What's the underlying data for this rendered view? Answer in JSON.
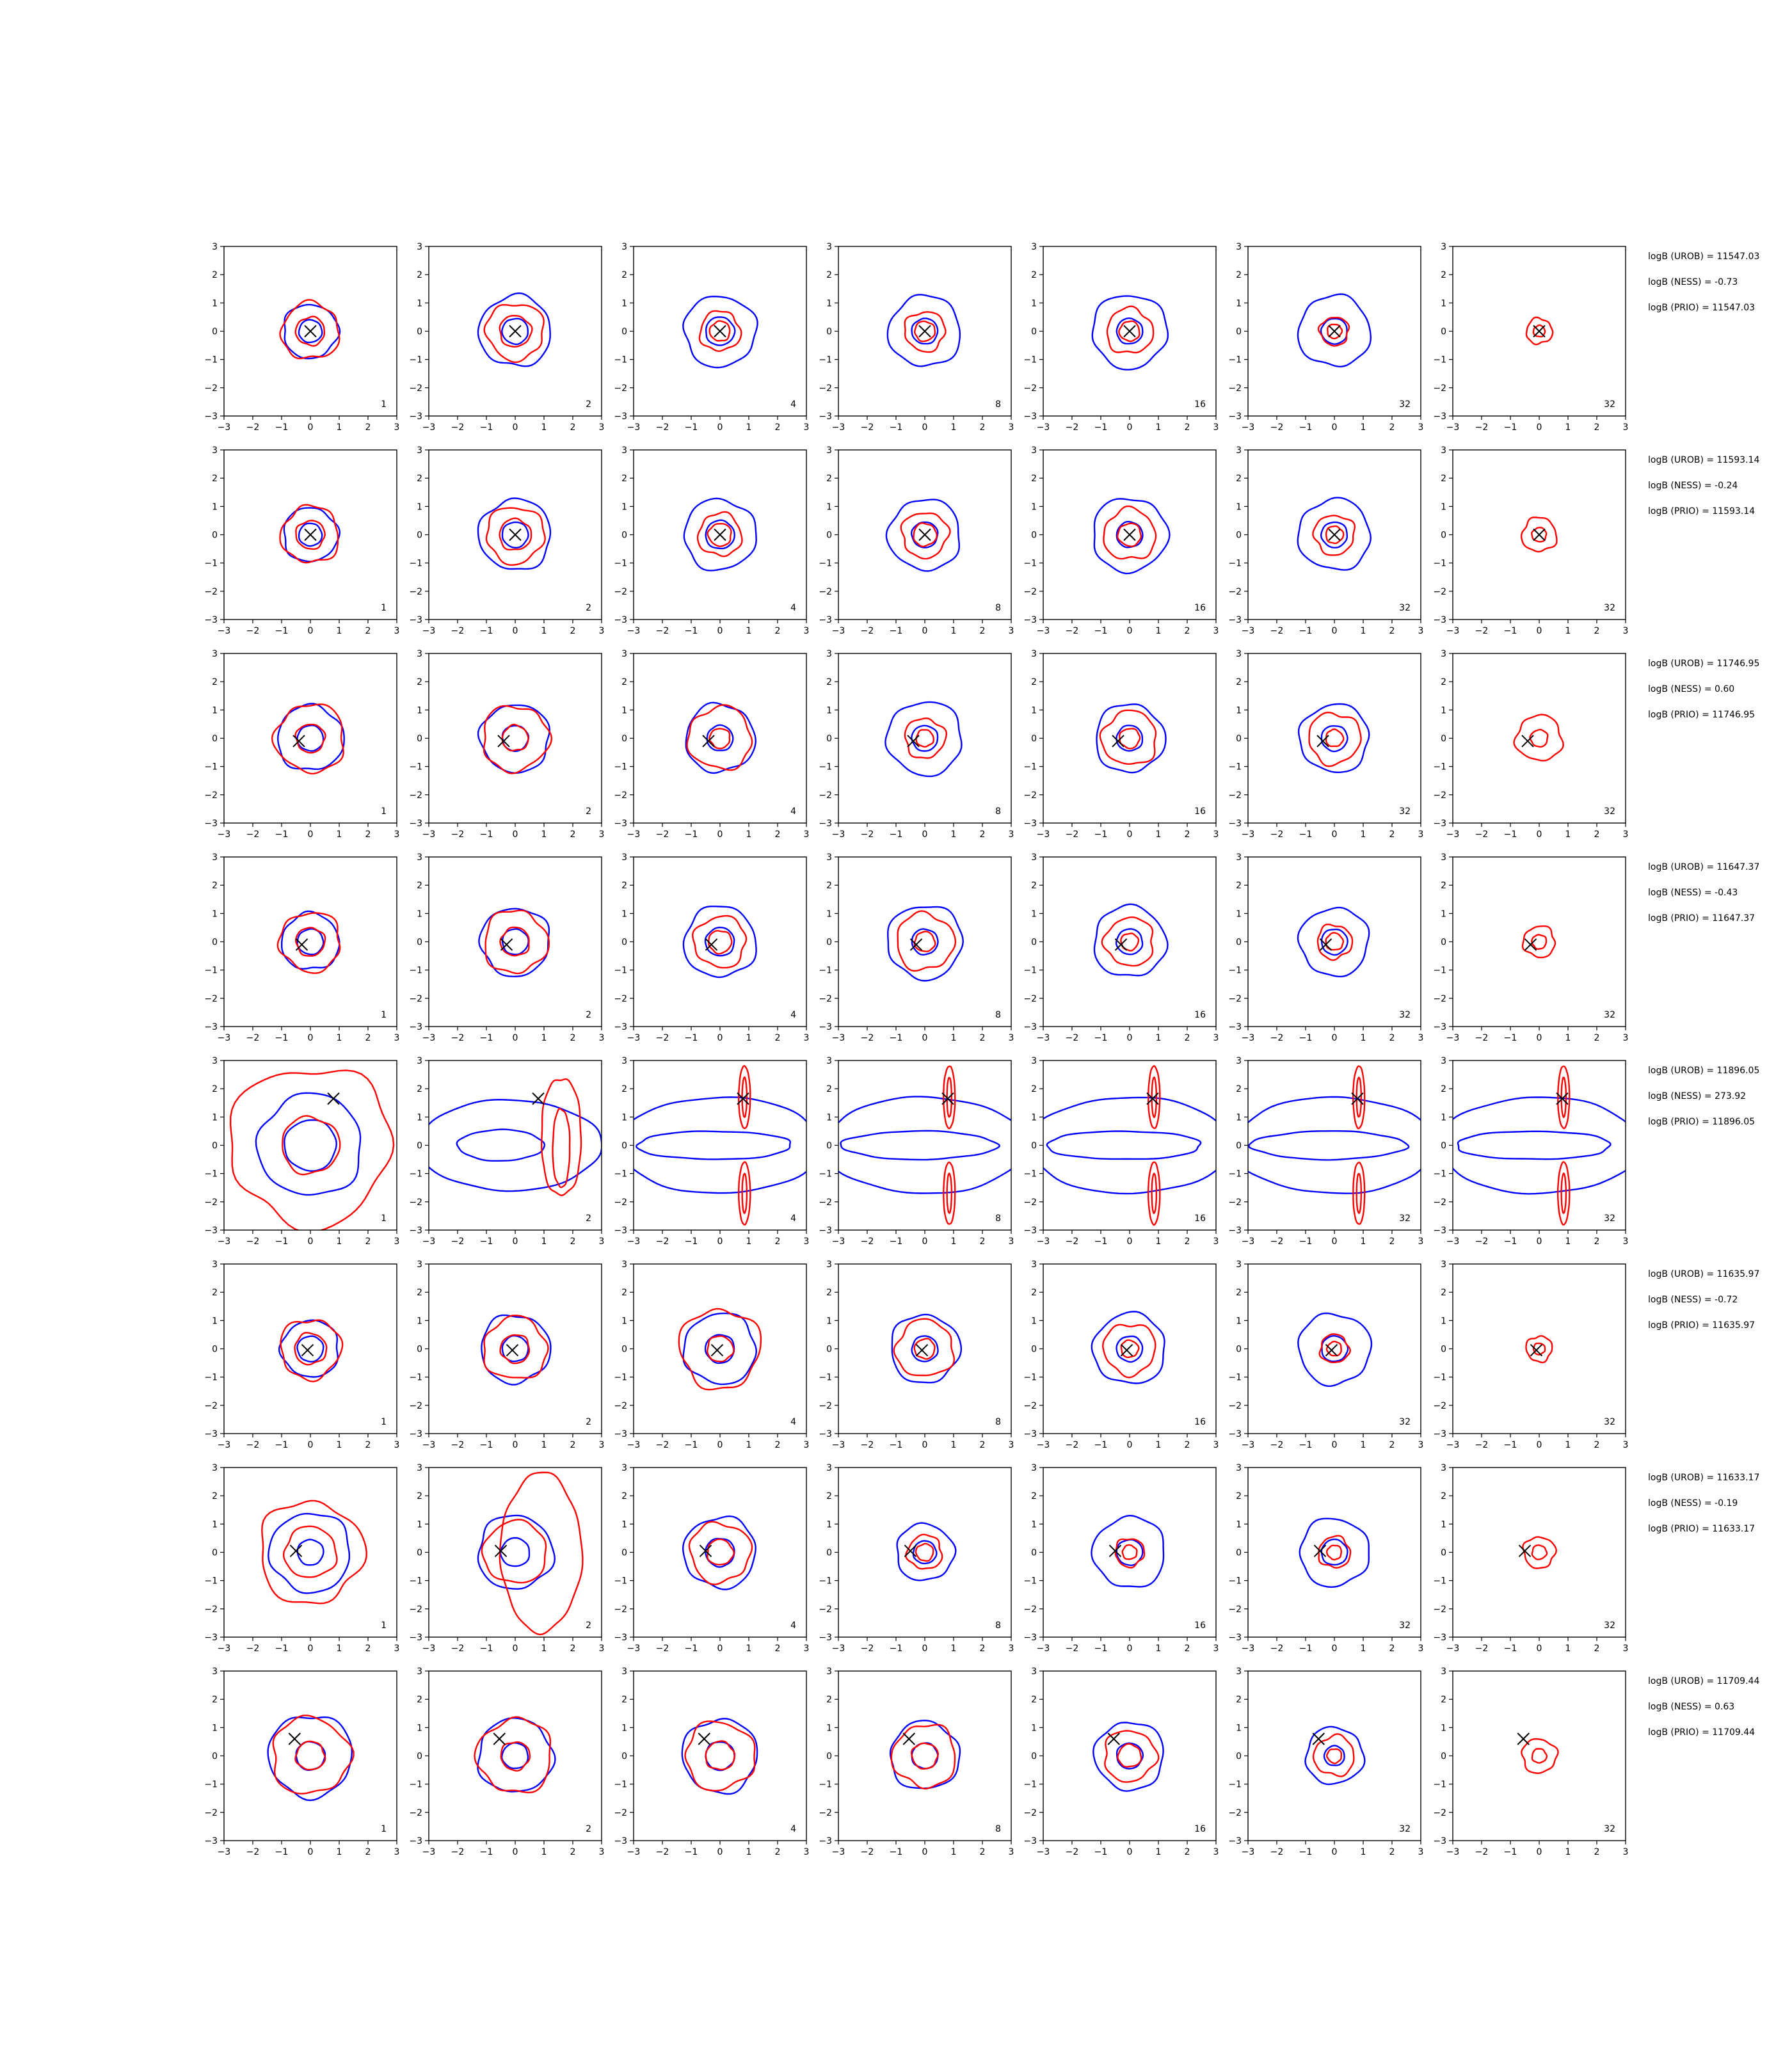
{
  "chart_data": {
    "type": "contour-grid",
    "xlim": [
      -3,
      3
    ],
    "ylim": [
      -3,
      3
    ],
    "ticks": [
      "−3",
      "−2",
      "−1",
      "0",
      "1",
      "2",
      "3"
    ],
    "tick_values": [
      -3,
      -2,
      -1,
      0,
      1,
      2,
      3
    ],
    "columns": [
      "1",
      "2",
      "4",
      "8",
      "16",
      "32",
      "32"
    ],
    "colors": {
      "blue_contour": "#0000ff",
      "red_contour": "#ff0000",
      "marker": "#000000"
    },
    "rows": [
      {
        "marker": [
          0.0,
          0.0
        ],
        "logB": [
          "logB (UROB) = 11547.03",
          "logB (NESS) = -0.73",
          "logB (PRIO) = 11547.03"
        ],
        "panels": [
          {
            "blue": [
              0.95,
              0.4
            ],
            "red": [
              1.0,
              0.5
            ]
          },
          {
            "blue": [
              1.25,
              0.45
            ],
            "red": [
              1.0,
              0.55
            ]
          },
          {
            "blue": [
              1.25,
              0.5
            ],
            "red": [
              0.7,
              0.35
            ]
          },
          {
            "blue": [
              1.25,
              0.45
            ],
            "red": [
              0.7,
              0.35
            ]
          },
          {
            "blue": [
              1.3,
              0.45
            ],
            "red": [
              0.8,
              0.35
            ]
          },
          {
            "blue": [
              1.25,
              0.45
            ],
            "red": [
              0.5,
              0.25
            ]
          },
          {
            "blue": [],
            "red": [
              0.45,
              0.2
            ]
          }
        ]
      },
      {
        "marker": [
          0.0,
          0.0
        ],
        "logB": [
          "logB (UROB) = 11593.14",
          "logB (NESS) = -0.24",
          "logB (PRIO) = 11593.14"
        ],
        "panels": [
          {
            "blue": [
              0.95,
              0.4
            ],
            "red": [
              1.0,
              0.5
            ]
          },
          {
            "blue": [
              1.25,
              0.45
            ],
            "red": [
              1.0,
              0.55
            ]
          },
          {
            "blue": [
              1.25,
              0.5
            ],
            "red": [
              0.75,
              0.4
            ]
          },
          {
            "blue": [
              1.25,
              0.45
            ],
            "red": [
              0.8,
              0.4
            ]
          },
          {
            "blue": [
              1.3,
              0.45
            ],
            "red": [
              0.9,
              0.4
            ]
          },
          {
            "blue": [
              1.25,
              0.45
            ],
            "red": [
              0.7,
              0.3
            ]
          },
          {
            "blue": [],
            "red": [
              0.6,
              0.25
            ]
          }
        ]
      },
      {
        "marker": [
          -0.4,
          -0.1
        ],
        "logB": [
          "logB (UROB) = 11746.95",
          "logB (NESS) = 0.60",
          "logB (PRIO) = 11746.95"
        ],
        "panels": [
          {
            "blue": [
              1.15,
              0.45
            ],
            "red": [
              1.2,
              0.5
            ]
          },
          {
            "blue": [
              1.2,
              0.45
            ],
            "red": [
              1.15,
              0.45
            ]
          },
          {
            "blue": [
              1.2,
              0.45
            ],
            "red": [
              1.1,
              0.35
            ]
          },
          {
            "blue": [
              1.3,
              0.45
            ],
            "red": [
              0.7,
              0.3
            ]
          },
          {
            "blue": [
              1.2,
              0.45
            ],
            "red": [
              0.95,
              0.35
            ]
          },
          {
            "blue": [
              1.2,
              0.45
            ],
            "red": [
              0.9,
              0.3
            ]
          },
          {
            "blue": [],
            "red": [
              0.8,
              0.3
            ]
          }
        ]
      },
      {
        "marker": [
          -0.3,
          -0.1
        ],
        "logB": [
          "logB (UROB) = 11647.37",
          "logB (NESS) = -0.43",
          "logB (PRIO) = 11647.37"
        ],
        "panels": [
          {
            "blue": [
              1.0,
              0.45
            ],
            "red": [
              1.05,
              0.5
            ]
          },
          {
            "blue": [
              1.2,
              0.45
            ],
            "red": [
              1.1,
              0.5
            ]
          },
          {
            "blue": [
              1.25,
              0.5
            ],
            "red": [
              0.9,
              0.4
            ]
          },
          {
            "blue": [
              1.3,
              0.45
            ],
            "red": [
              1.0,
              0.35
            ]
          },
          {
            "blue": [
              1.25,
              0.45
            ],
            "red": [
              0.85,
              0.3
            ]
          },
          {
            "blue": [
              1.2,
              0.45
            ],
            "red": [
              0.6,
              0.3
            ]
          },
          {
            "blue": [],
            "red": [
              0.55,
              0.25
            ]
          }
        ]
      },
      {
        "marker": [
          0.8,
          1.65
        ],
        "logB": [
          "logB (UROB) = 11896.05",
          "logB (NESS) = 273.92",
          "logB (PRIO) = 11896.05"
        ],
        "panels": [
          {
            "blue": [
              1.8,
              0.9
            ],
            "red": [
              2.8,
              1.0
            ]
          },
          {
            "blue": [],
            "red": []
          },
          {
            "blue": [],
            "red": []
          },
          {
            "blue": [],
            "red": []
          },
          {
            "blue": [],
            "red": []
          },
          {
            "blue": [],
            "red": []
          },
          {
            "blue": [],
            "red": []
          }
        ]
      },
      {
        "marker": [
          -0.1,
          -0.05
        ],
        "logB": [
          "logB (UROB) = 11635.97",
          "logB (NESS) = -0.72",
          "logB (PRIO) = 11635.97"
        ],
        "panels": [
          {
            "blue": [
              1.0,
              0.45
            ],
            "red": [
              1.05,
              0.55
            ]
          },
          {
            "blue": [
              1.2,
              0.45
            ],
            "red": [
              1.1,
              0.5
            ]
          },
          {
            "blue": [
              1.25,
              0.5
            ],
            "red": [
              1.4,
              0.45
            ]
          },
          {
            "blue": [
              1.2,
              0.45
            ],
            "red": [
              1.0,
              0.35
            ]
          },
          {
            "blue": [
              1.25,
              0.45
            ],
            "red": [
              0.9,
              0.3
            ]
          },
          {
            "blue": [
              1.25,
              0.45
            ],
            "red": [
              0.5,
              0.25
            ]
          },
          {
            "blue": [],
            "red": [
              0.45,
              0.2
            ]
          }
        ]
      },
      {
        "marker": [
          -0.5,
          0.05
        ],
        "logB": [
          "logB (UROB) = 11633.17",
          "logB (NESS) = -0.19",
          "logB (PRIO) = 11633.17"
        ],
        "panels": [
          {
            "blue": [
              1.4,
              0.45
            ],
            "red": [
              1.8,
              0.9
            ]
          },
          {
            "blue": [
              1.3,
              0.5
            ],
            "red": []
          },
          {
            "blue": [
              1.25,
              0.5
            ],
            "red": [
              1.05,
              0.45
            ]
          },
          {
            "blue": [
              1.0,
              0.4
            ],
            "red": [
              0.6,
              0.3
            ]
          },
          {
            "blue": [
              1.25,
              0.45
            ],
            "red": [
              0.5,
              0.25
            ]
          },
          {
            "blue": [
              1.2,
              0.45
            ],
            "red": [
              0.55,
              0.25
            ]
          },
          {
            "blue": [],
            "red": [
              0.55,
              0.25
            ]
          }
        ]
      },
      {
        "marker": [
          -0.55,
          0.6
        ],
        "logB": [
          "logB (UROB) = 11709.44",
          "logB (NESS) = 0.63",
          "logB (PRIO) = 11709.44"
        ],
        "panels": [
          {
            "blue": [
              1.45,
              0.5
            ],
            "red": [
              1.35,
              0.5
            ]
          },
          {
            "blue": [
              1.3,
              0.45
            ],
            "red": [
              1.3,
              0.5
            ]
          },
          {
            "blue": [
              1.3,
              0.5
            ],
            "red": [
              1.2,
              0.5
            ]
          },
          {
            "blue": [
              1.2,
              0.45
            ],
            "red": [
              1.1,
              0.45
            ]
          },
          {
            "blue": [
              1.2,
              0.45
            ],
            "red": [
              0.9,
              0.4
            ]
          },
          {
            "blue": [
              1.0,
              0.35
            ],
            "red": [
              0.7,
              0.25
            ]
          },
          {
            "blue": [],
            "red": [
              0.6,
              0.25
            ]
          }
        ]
      }
    ]
  }
}
